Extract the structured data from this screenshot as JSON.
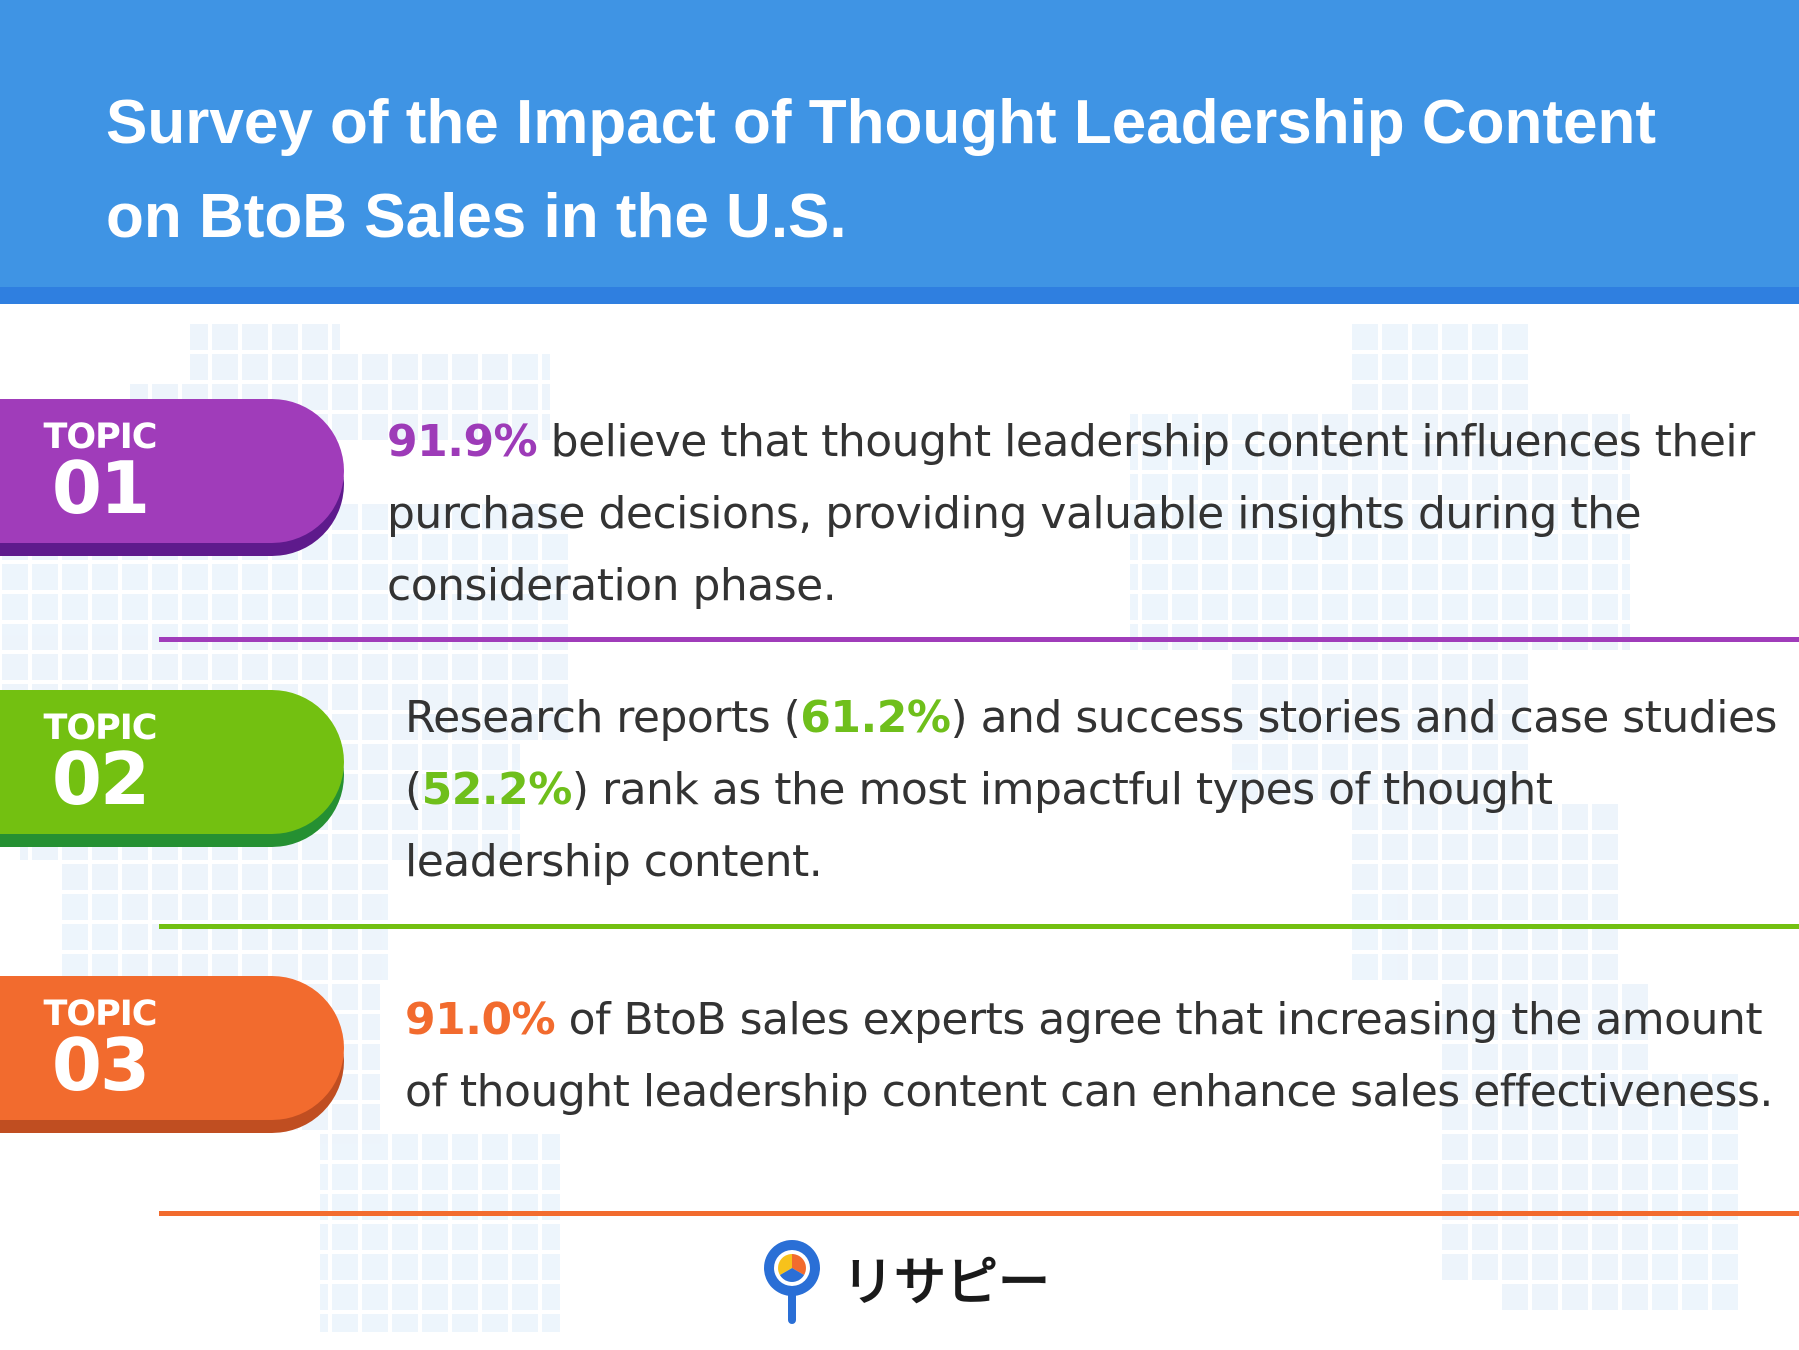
{
  "header": {
    "title_line1": "Survey of the Impact of Thought Leadership Content",
    "title_line2": "on BtoB Sales in the U.S.",
    "background_color": "#3f94e4"
  },
  "topics": [
    {
      "label": "TOPIC",
      "number": "01",
      "color": "#a03cba",
      "text": {
        "highlight": "91.9%",
        "rest": " believe that thought leadership content influences their purchase decisions, providing valuable insights during the consideration phase."
      }
    },
    {
      "label": "TOPIC",
      "number": "02",
      "color": "#73c011",
      "text": {
        "part1": "Research reports (",
        "highlight1": "61.2%",
        "part2": ") and success stories and case studies (",
        "highlight2": "52.2%",
        "part3": ") rank as the most impactful types of thought leadership content."
      }
    },
    {
      "label": "TOPIC",
      "number": "03",
      "color": "#f26b2e",
      "text": {
        "highlight": "91.0%",
        "rest": " of BtoB sales experts agree that increasing the amount of thought leadership content can enhance sales effectiveness."
      }
    }
  ],
  "logo": {
    "name": "リサピー",
    "icon": "magnifier-pie-icon"
  }
}
